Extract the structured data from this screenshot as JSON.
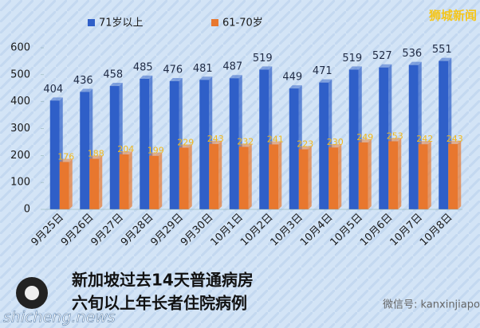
{
  "chart_data": {
    "type": "bar",
    "categories": [
      "9月25日",
      "9月26日",
      "9月27日",
      "9月28日",
      "9月29日",
      "9月30日",
      "10月1日",
      "10月2日",
      "10月3日",
      "10月4日",
      "10月5日",
      "10月6日",
      "10月7日",
      "10月8日"
    ],
    "series": [
      {
        "name": "71岁以上",
        "color": "#2f5fc8",
        "label_color": "#1f2a44",
        "values": [
          404,
          436,
          458,
          485,
          476,
          481,
          487,
          519,
          449,
          471,
          519,
          527,
          536,
          551
        ]
      },
      {
        "name": "61-70岁",
        "color": "#e8772e",
        "label_color": "#f2b81c",
        "values": [
          176,
          188,
          204,
          199,
          229,
          243,
          232,
          241,
          223,
          230,
          249,
          253,
          242,
          243
        ]
      }
    ],
    "ylim": [
      0,
      600
    ],
    "yticks": [
      0,
      100,
      200,
      300,
      400,
      500,
      600
    ],
    "grid": false,
    "legend": "top"
  },
  "watermark": "狮城新闻",
  "caption": [
    "新加坡过去14天普通病房",
    "六旬以上年长者住院病例"
  ],
  "site": "shicheng.news",
  "wechat": "微信号: kanxinjiapo"
}
